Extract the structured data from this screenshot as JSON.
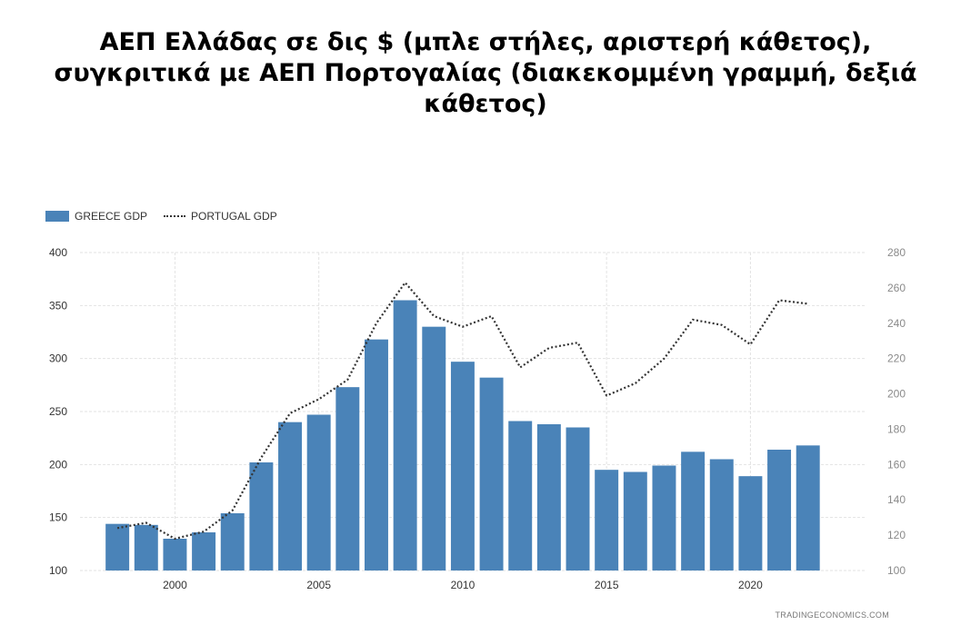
{
  "title_lines": [
    "ΑΕΠ Ελλάδας σε δις $ (μπλε στήλες, αριστερή κάθετος),",
    "συγκριτικά με ΑΕΠ Πορτογαλίας (διακεκομμένη γραμμή, δεξιά",
    "κάθετος)"
  ],
  "watermark": "TRADINGECONOMICS.COM",
  "colors": {
    "bar": "#4a83b8",
    "line": "#333333",
    "grid": "#e2e2e2",
    "axis_text": "#333333",
    "right_axis_text": "#8a8a8a"
  },
  "chart_data": {
    "type": "bar",
    "title": "ΑΕΠ Ελλάδας σε δις $ (μπλε στήλες, αριστερή κάθετος), συγκριτικά με ΑΕΠ Πορτογαλίας (διακεκομμένη γραμμή, δεξιά κάθετος)",
    "x": [
      1998,
      1999,
      2000,
      2001,
      2002,
      2003,
      2004,
      2005,
      2006,
      2007,
      2008,
      2009,
      2010,
      2011,
      2012,
      2013,
      2014,
      2015,
      2016,
      2017,
      2018,
      2019,
      2020,
      2021,
      2022
    ],
    "xlim": [
      1996.7,
      2024.0
    ],
    "x_ticks": [
      "2000",
      "2005",
      "2010",
      "2015",
      "2020"
    ],
    "x_tick_values": [
      2000,
      2005,
      2010,
      2015,
      2020
    ],
    "grid": true,
    "legend_position": "top-left",
    "series": [
      {
        "name": "GREECE GDP",
        "type": "bar",
        "axis": "left",
        "values": [
          144,
          143,
          130,
          136,
          154,
          202,
          240,
          247,
          273,
          318,
          355,
          330,
          297,
          282,
          241,
          238,
          235,
          195,
          193,
          199,
          212,
          205,
          189,
          214,
          218
        ]
      },
      {
        "name": "PORTUGAL GDP",
        "type": "line",
        "style": "dotted",
        "axis": "right",
        "values": [
          124,
          127,
          118,
          122,
          134,
          164,
          189,
          197,
          208,
          240,
          263,
          244,
          238,
          244,
          215,
          226,
          229,
          199,
          206,
          220,
          242,
          239,
          228,
          253,
          251
        ]
      }
    ],
    "y_left": {
      "ylim": [
        100,
        400
      ],
      "ticks": [
        "100",
        "150",
        "200",
        "250",
        "300",
        "350",
        "400"
      ]
    },
    "y_right": {
      "ylim": [
        100,
        280
      ],
      "ticks": [
        "100",
        "120",
        "140",
        "160",
        "180",
        "200",
        "220",
        "240",
        "260",
        "280"
      ]
    }
  }
}
